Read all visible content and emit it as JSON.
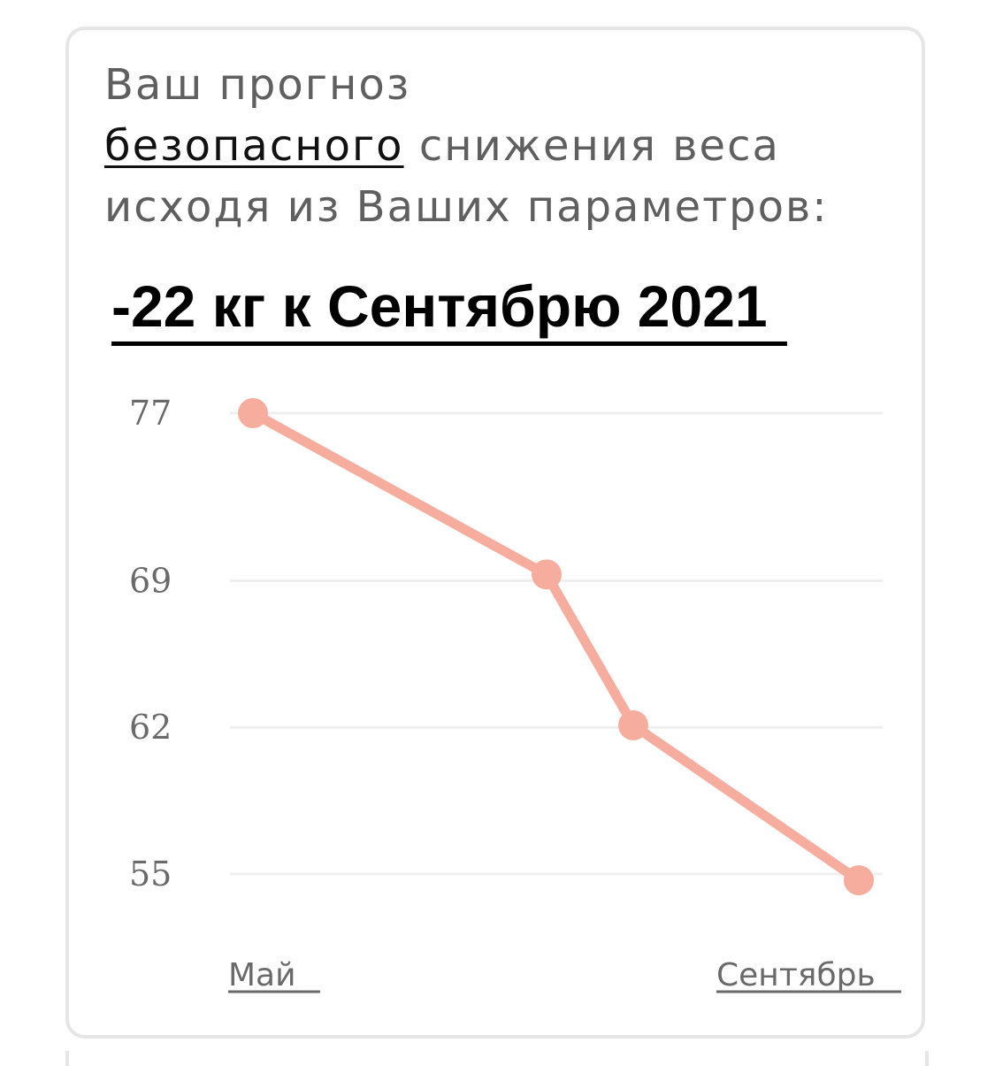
{
  "header": {
    "title_prefix": "Ваш прогноз",
    "title_highlight": "безопасного",
    "title_suffix": "снижения веса исходя из Ваших параметров:",
    "forecast": "-22 кг к Сентябрю 2021"
  },
  "colors": {
    "line": "#f7ad9e",
    "grid": "#efefef",
    "card_border": "#e6e6e6"
  },
  "chart_data": {
    "type": "line",
    "title": "",
    "xlabel": "",
    "ylabel": "",
    "x": [
      "Май",
      "",
      "",
      "Сентябрь"
    ],
    "x_tick_labels": [
      "Май",
      "Сентябрь"
    ],
    "y_ticks": [
      "77",
      "69",
      "62",
      "55"
    ],
    "values": [
      77,
      69.3,
      62.1,
      54.7
    ],
    "ylim": [
      55,
      77
    ],
    "grid": true,
    "legend": "none"
  }
}
